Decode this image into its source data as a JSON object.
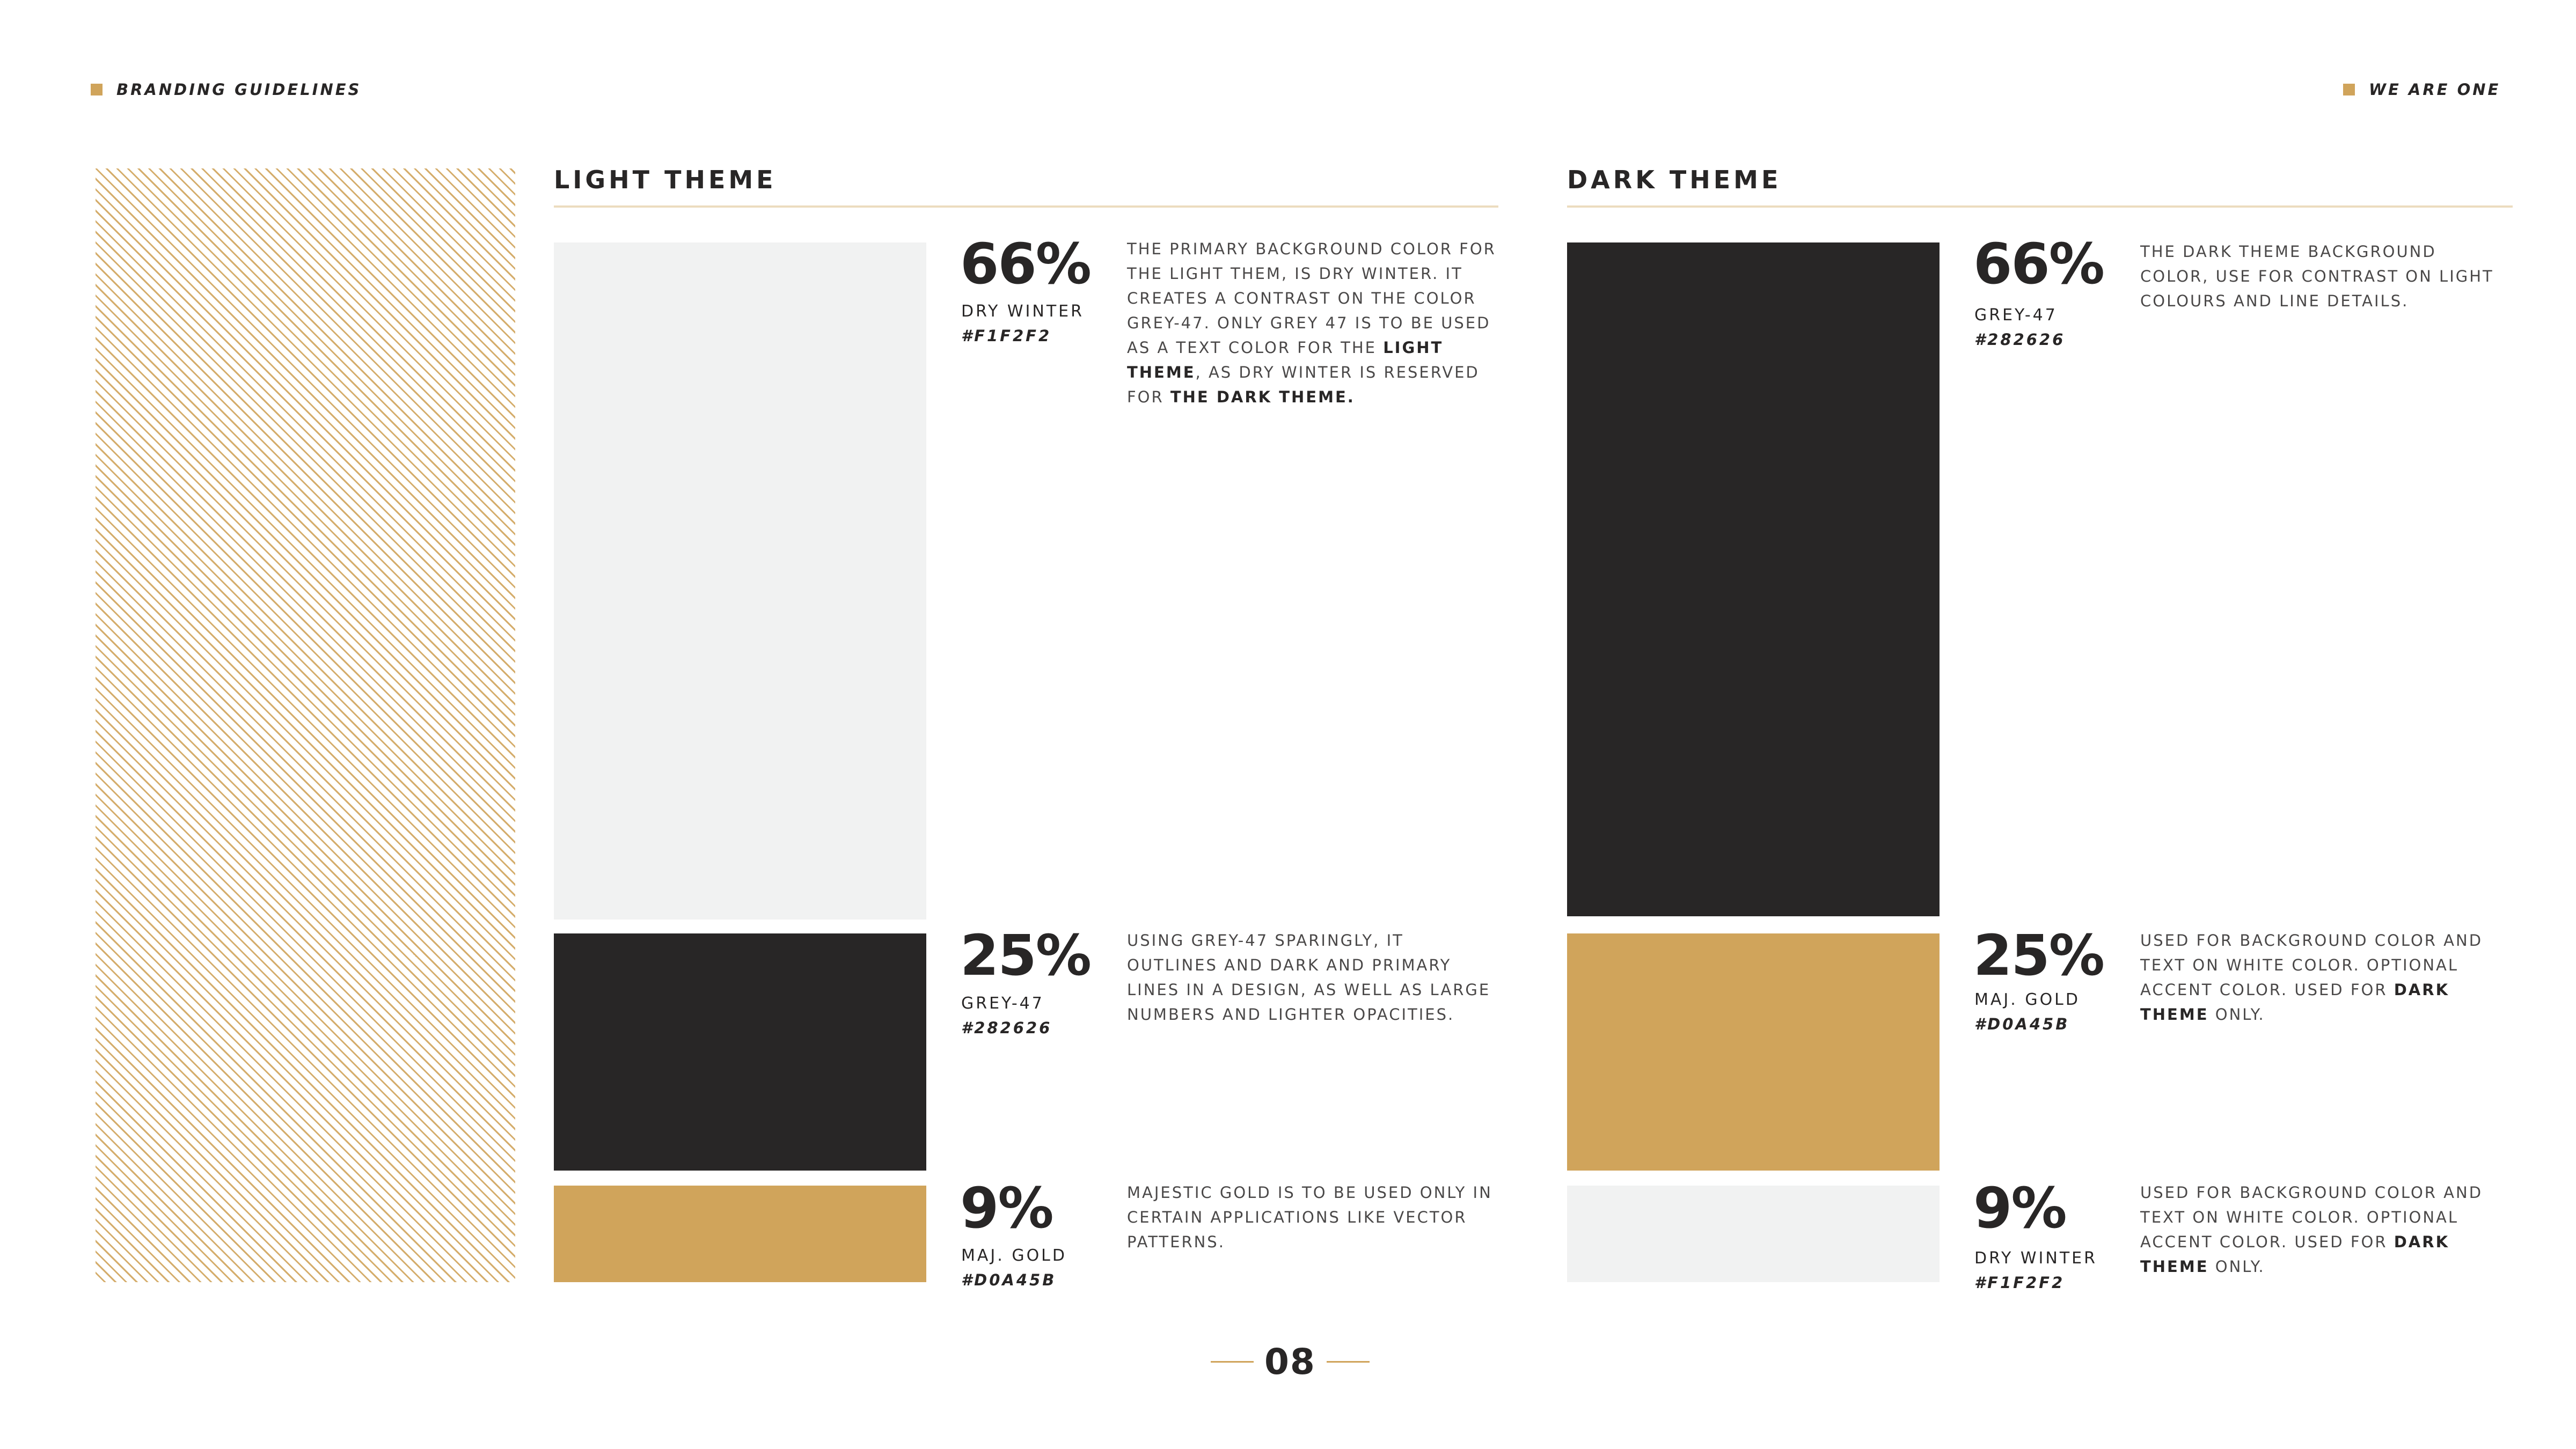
{
  "header": {
    "left_label": "BRANDING GUIDELINES",
    "right_label": "WE ARE ONE"
  },
  "colors": {
    "gold": "#D0A45B",
    "grey47": "#282626",
    "dry_winter": "#F1F2F2"
  },
  "light_theme": {
    "title": "LIGHT THEME",
    "rows": [
      {
        "percent": "66%",
        "name": "DRY WINTER",
        "hex": "#F1F2F2",
        "desc_parts": [
          "THE PRIMARY BACKGROUND COLOR FOR THE LIGHT THEM, IS DRY WINTER. IT CREATES A CONTRAST ON THE COLOR GREY-47. ONLY GREY 47 IS TO BE USED AS A TEXT COLOR FOR THE ",
          "LIGHT THEME",
          ", AS DRY WINTER IS RESERVED FOR ",
          "THE DARK THEME."
        ]
      },
      {
        "percent": "25%",
        "name": "GREY-47",
        "hex": "#282626",
        "description": "USING GREY-47 SPARINGLY, IT OUTLINES AND DARK AND PRIMARY LINES IN A DESIGN, AS WELL AS LARGE NUMBERS AND LIGHTER OPACITIES."
      },
      {
        "percent": "9%",
        "name": "MAJ. GOLD",
        "hex": "#D0A45B",
        "description": "MAJESTIC GOLD IS TO BE USED ONLY IN CERTAIN APPLICATIONS LIKE VECTOR PATTERNS."
      }
    ]
  },
  "dark_theme": {
    "title": "DARK THEME",
    "rows": [
      {
        "percent": "66%",
        "name": "GREY-47",
        "hex": "#282626",
        "description": "THE DARK THEME BACKGROUND COLOR, USE FOR CONTRAST ON LIGHT COLOURS AND LINE DETAILS."
      },
      {
        "percent": "25%",
        "name": "MAJ. GOLD",
        "hex": "#D0A45B",
        "desc_parts": [
          "USED FOR BACKGROUND COLOR AND TEXT ON WHITE COLOR. OPTIONAL ACCENT COLOR. USED FOR ",
          "DARK THEME",
          " ONLY."
        ]
      },
      {
        "percent": "9%",
        "name": "DRY WINTER",
        "hex": "#F1F2F2",
        "desc_parts": [
          "USED FOR BACKGROUND COLOR AND TEXT ON WHITE COLOR. OPTIONAL ACCENT COLOR. USED FOR ",
          "DARK THEME",
          " ONLY."
        ]
      }
    ]
  },
  "page_number": "08"
}
